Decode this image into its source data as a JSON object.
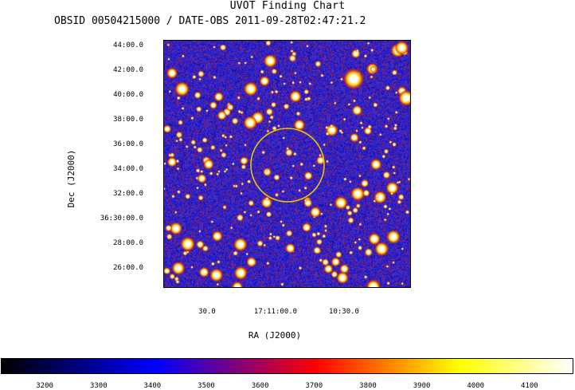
{
  "title": "UVOT Finding Chart",
  "subtitle": "OBSID 00504215000 / DATE-OBS 2011-09-28T02:47:21.2",
  "axes": {
    "xlabel": "RA (J2000)",
    "ylabel": "Dec (J2000)",
    "x_ticks": [
      {
        "label": "30.0",
        "ra_offset_sec": 30
      },
      {
        "label": "17:11:00.0",
        "ra_offset_sec": 0
      },
      {
        "label": "10:30.0",
        "ra_offset_sec": -30
      }
    ],
    "y_ticks": [
      {
        "label": "44:00.0",
        "dec_arcmin": 44
      },
      {
        "label": "42:00.0",
        "dec_arcmin": 42
      },
      {
        "label": "40:00.0",
        "dec_arcmin": 40
      },
      {
        "label": "38:00.0",
        "dec_arcmin": 38
      },
      {
        "label": "36:00.0",
        "dec_arcmin": 36
      },
      {
        "label": "34:00.0",
        "dec_arcmin": 34
      },
      {
        "label": "32:00.0",
        "dec_arcmin": 32
      },
      {
        "label": "36:30:00.0",
        "dec_arcmin": 30
      },
      {
        "label": "28:00.0",
        "dec_arcmin": 28
      },
      {
        "label": "26:00.0",
        "dec_arcmin": 26
      }
    ]
  },
  "target_circle": {
    "color": "#e6c800"
  },
  "colorbar": {
    "ticks": [
      "3200",
      "3300",
      "3400",
      "3500",
      "3600",
      "3700",
      "3800",
      "3900",
      "4000",
      "4100"
    ],
    "range": [
      3120,
      4180
    ],
    "colors": [
      "#000000",
      "#0000ff",
      "#ff0000",
      "#ffff00",
      "#ffffff"
    ]
  },
  "image_colors": {
    "background_low": "#1f2ad0",
    "background_mid": "#5a3ab0",
    "noise_red": "#c01818",
    "star_core": "#ffffff",
    "star_halo": "#ffd000"
  }
}
